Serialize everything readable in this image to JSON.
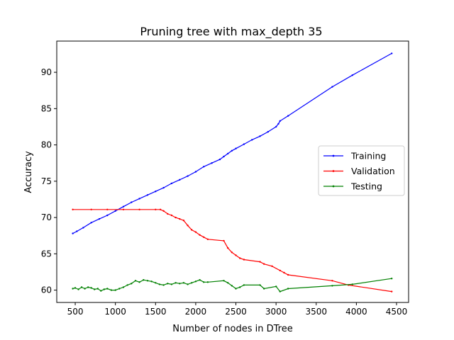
{
  "chart_data": {
    "type": "line",
    "title": "Pruning tree with max_depth 35",
    "xlabel": "Number of nodes in DTree",
    "ylabel": "Accuracy",
    "xlim": [
      270,
      4650
    ],
    "ylim": [
      58.3,
      94.3
    ],
    "xticks": [
      500,
      1000,
      1500,
      2000,
      2500,
      3000,
      3500,
      4000,
      4500
    ],
    "yticks": [
      60,
      65,
      70,
      75,
      80,
      85,
      90
    ],
    "grid": false,
    "legend_position": "center-right",
    "series": [
      {
        "name": "Training",
        "color": "#0000ff",
        "x": [
          470,
          520,
          600,
          700,
          800,
          900,
          1000,
          1100,
          1200,
          1300,
          1400,
          1500,
          1600,
          1700,
          1800,
          1900,
          2000,
          2100,
          2200,
          2300,
          2350,
          2400,
          2450,
          2500,
          2600,
          2700,
          2800,
          2900,
          3000,
          3030,
          3050,
          3150,
          3700,
          3950,
          4440
        ],
        "y": [
          67.8,
          68.1,
          68.6,
          69.3,
          69.8,
          70.3,
          70.9,
          71.5,
          72.1,
          72.6,
          73.1,
          73.6,
          74.1,
          74.7,
          75.2,
          75.7,
          76.3,
          77.0,
          77.5,
          78.0,
          78.4,
          78.8,
          79.2,
          79.5,
          80.1,
          80.7,
          81.2,
          81.8,
          82.5,
          82.9,
          83.3,
          84.0,
          88.0,
          89.6,
          92.6
        ]
      },
      {
        "name": "Validation",
        "color": "#ff0000",
        "x": [
          470,
          700,
          900,
          1100,
          1300,
          1500,
          1560,
          1600,
          1650,
          1700,
          1750,
          1800,
          1850,
          1900,
          1950,
          2000,
          2050,
          2100,
          2150,
          2350,
          2400,
          2450,
          2500,
          2550,
          2600,
          2800,
          2850,
          2950,
          3050,
          3100,
          3150,
          3700,
          3900,
          4440
        ],
        "y": [
          71.1,
          71.1,
          71.1,
          71.1,
          71.1,
          71.1,
          71.1,
          70.9,
          70.5,
          70.3,
          70.0,
          69.8,
          69.6,
          68.9,
          68.3,
          68.0,
          67.6,
          67.3,
          67.0,
          66.8,
          65.8,
          65.2,
          64.8,
          64.4,
          64.2,
          63.9,
          63.6,
          63.3,
          62.7,
          62.4,
          62.1,
          61.3,
          60.7,
          59.8
        ]
      },
      {
        "name": "Testing",
        "color": "#008000",
        "x": [
          470,
          500,
          540,
          580,
          620,
          660,
          700,
          740,
          780,
          820,
          860,
          900,
          950,
          1000,
          1050,
          1100,
          1150,
          1200,
          1250,
          1300,
          1350,
          1400,
          1450,
          1500,
          1550,
          1600,
          1650,
          1700,
          1750,
          1800,
          1850,
          1900,
          1950,
          2000,
          2050,
          2100,
          2150,
          2350,
          2400,
          2450,
          2500,
          2550,
          2600,
          2800,
          2850,
          3000,
          3050,
          3150,
          3700,
          3950,
          4440
        ],
        "y": [
          60.2,
          60.3,
          60.1,
          60.4,
          60.2,
          60.4,
          60.3,
          60.1,
          60.2,
          59.9,
          60.1,
          60.2,
          60.0,
          60.0,
          60.2,
          60.4,
          60.7,
          60.9,
          61.3,
          61.1,
          61.4,
          61.3,
          61.2,
          61.0,
          60.8,
          60.7,
          60.9,
          60.8,
          61.0,
          60.9,
          61.0,
          60.8,
          61.0,
          61.2,
          61.4,
          61.1,
          61.1,
          61.3,
          61.0,
          60.6,
          60.2,
          60.4,
          60.7,
          60.7,
          60.2,
          60.5,
          59.8,
          60.2,
          60.6,
          60.8,
          61.6
        ]
      }
    ]
  }
}
